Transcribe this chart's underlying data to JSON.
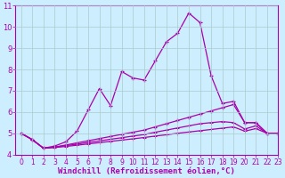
{
  "xlabel": "Windchill (Refroidissement éolien,°C)",
  "background_color": "#cceeff",
  "line_color": "#aa00aa",
  "x_data": [
    0,
    1,
    2,
    3,
    4,
    5,
    6,
    7,
    8,
    9,
    10,
    11,
    12,
    13,
    14,
    15,
    16,
    17,
    18,
    19,
    20,
    21,
    22,
    23
  ],
  "line1": [
    5.0,
    4.7,
    4.3,
    4.4,
    4.6,
    5.1,
    6.1,
    7.1,
    6.3,
    7.9,
    7.6,
    7.5,
    8.4,
    9.3,
    9.7,
    10.65,
    10.2,
    7.7,
    6.4,
    6.5,
    5.5,
    5.5,
    5.0,
    5.0
  ],
  "line2": [
    5.0,
    4.7,
    4.3,
    4.35,
    4.45,
    4.55,
    4.65,
    4.75,
    4.85,
    4.95,
    5.05,
    5.15,
    5.3,
    5.45,
    5.6,
    5.75,
    5.9,
    6.05,
    6.2,
    6.35,
    5.5,
    5.5,
    5.0,
    5.0
  ],
  "line3": [
    5.0,
    4.7,
    4.3,
    4.35,
    4.42,
    4.49,
    4.57,
    4.64,
    4.72,
    4.79,
    4.87,
    4.94,
    5.05,
    5.15,
    5.25,
    5.35,
    5.45,
    5.5,
    5.55,
    5.5,
    5.2,
    5.35,
    5.0,
    5.0
  ],
  "line4": [
    5.0,
    4.7,
    4.3,
    4.33,
    4.38,
    4.44,
    4.5,
    4.56,
    4.62,
    4.68,
    4.74,
    4.8,
    4.87,
    4.93,
    5.0,
    5.06,
    5.12,
    5.18,
    5.24,
    5.3,
    5.1,
    5.22,
    5.0,
    5.0
  ],
  "ylim": [
    4.0,
    11.0
  ],
  "xlim": [
    -0.5,
    23.0
  ],
  "yticks": [
    4,
    5,
    6,
    7,
    8,
    9,
    10,
    11
  ],
  "xticks": [
    0,
    1,
    2,
    3,
    4,
    5,
    6,
    7,
    8,
    9,
    10,
    11,
    12,
    13,
    14,
    15,
    16,
    17,
    18,
    19,
    20,
    21,
    22,
    23
  ],
  "grid_color": "#aacccc",
  "spine_color": "#aa00aa",
  "tick_label_size": 5.5,
  "xlabel_size": 6.5
}
